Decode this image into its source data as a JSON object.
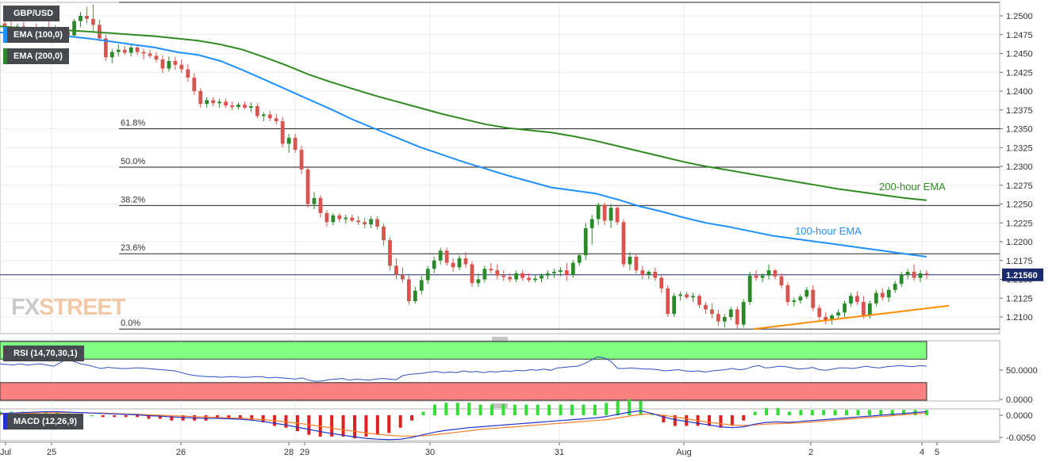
{
  "pair": "GBP/USD",
  "legend": {
    "ema100": "EMA (100,0)",
    "ema200": "EMA (200,0)",
    "rsi": "RSI (14,70,30,1)",
    "macd": "MACD (12,26,9)"
  },
  "watermark": {
    "part1": "FX",
    "part2": "STREET"
  },
  "annotations": {
    "ema200": "200-hour EMA",
    "ema100": "100-hour EMA"
  },
  "price_label": "1.21560",
  "colors": {
    "up": "#2a8a2a",
    "down": "#d9534f",
    "ema100": "#1e90ff",
    "ema200": "#2f8a1f",
    "trendline": "#ff8c00",
    "rsi": "#3050c0",
    "rsi_ob": "#80ff80",
    "rsi_os": "#f88080",
    "macd_line": "#2233cc",
    "signal_line": "#ff7f27",
    "hist_pos": "#33dd33",
    "hist_neg": "#e02020"
  },
  "chart_data": {
    "type": "candlestick",
    "price_axis": {
      "ylim": [
        1.2075,
        1.2515
      ],
      "ticks": [
        "1.2500",
        "1.2475",
        "1.2450",
        "1.2425",
        "1.2400",
        "1.2375",
        "1.2350",
        "1.2325",
        "1.2300",
        "1.2275",
        "1.2250",
        "1.2225",
        "1.2200",
        "1.2175",
        "1.2150",
        "1.2125",
        "1.2100"
      ]
    },
    "x_labels": [
      "Jul",
      "25",
      "26",
      "28",
      "29",
      "30",
      "31",
      "Aug",
      "2",
      "4",
      "5"
    ],
    "fibonacci": [
      {
        "label": "61.8%",
        "price": 1.235
      },
      {
        "label": "50.0%",
        "price": 1.2299
      },
      {
        "label": "38.2%",
        "price": 1.2248
      },
      {
        "label": "23.6%",
        "price": 1.2184
      },
      {
        "label": "0.0%",
        "price": 1.2084
      }
    ],
    "current_price": 1.2156,
    "ohlc": [
      [
        1.249,
        1.2497,
        1.2478,
        1.2485
      ],
      [
        1.2485,
        1.2493,
        1.2475,
        1.248
      ],
      [
        1.248,
        1.249,
        1.2472,
        1.2486
      ],
      [
        1.2486,
        1.2492,
        1.247,
        1.2474
      ],
      [
        1.2474,
        1.2485,
        1.2468,
        1.2481
      ],
      [
        1.2481,
        1.249,
        1.2474,
        1.2477
      ],
      [
        1.2477,
        1.2486,
        1.247,
        1.2483
      ],
      [
        1.2483,
        1.2493,
        1.2476,
        1.2478
      ],
      [
        1.2478,
        1.2488,
        1.2468,
        1.2472
      ],
      [
        1.2472,
        1.2482,
        1.2466,
        1.2479
      ],
      [
        1.2479,
        1.2485,
        1.247,
        1.2474
      ],
      [
        1.2474,
        1.2496,
        1.2472,
        1.2493
      ],
      [
        1.2493,
        1.2505,
        1.2485,
        1.25
      ],
      [
        1.25,
        1.2512,
        1.249,
        1.2496
      ],
      [
        1.2496,
        1.2515,
        1.248,
        1.2488
      ],
      [
        1.2488,
        1.2495,
        1.2466,
        1.247
      ],
      [
        1.247,
        1.2475,
        1.244,
        1.2445
      ],
      [
        1.2445,
        1.2456,
        1.2437,
        1.2452
      ],
      [
        1.2452,
        1.2462,
        1.2446,
        1.2455
      ],
      [
        1.2455,
        1.246,
        1.2448,
        1.2451
      ],
      [
        1.2451,
        1.2462,
        1.2446,
        1.2458
      ],
      [
        1.2458,
        1.2462,
        1.2448,
        1.2452
      ],
      [
        1.2452,
        1.2456,
        1.2442,
        1.245
      ],
      [
        1.245,
        1.2455,
        1.2444,
        1.2447
      ],
      [
        1.2447,
        1.2452,
        1.2438,
        1.2442
      ],
      [
        1.2442,
        1.2448,
        1.2424,
        1.243
      ],
      [
        1.243,
        1.2446,
        1.2426,
        1.244
      ],
      [
        1.244,
        1.2446,
        1.2428,
        1.2435
      ],
      [
        1.2435,
        1.2442,
        1.2424,
        1.2429
      ],
      [
        1.2429,
        1.2436,
        1.2412,
        1.2418
      ],
      [
        1.2418,
        1.2424,
        1.2395,
        1.24
      ],
      [
        1.24,
        1.2404,
        1.2378,
        1.2383
      ],
      [
        1.2383,
        1.2392,
        1.2378,
        1.2388
      ],
      [
        1.2388,
        1.2392,
        1.238,
        1.2384
      ],
      [
        1.2384,
        1.239,
        1.2378,
        1.2386
      ],
      [
        1.2386,
        1.239,
        1.2378,
        1.2381
      ],
      [
        1.2381,
        1.2386,
        1.2375,
        1.2379
      ],
      [
        1.2379,
        1.2385,
        1.2376,
        1.2382
      ],
      [
        1.2382,
        1.2386,
        1.2376,
        1.2378
      ],
      [
        1.2378,
        1.2385,
        1.2372,
        1.238
      ],
      [
        1.238,
        1.2384,
        1.2364,
        1.2367
      ],
      [
        1.2367,
        1.2372,
        1.236,
        1.2369
      ],
      [
        1.2369,
        1.2374,
        1.236,
        1.2364
      ],
      [
        1.2364,
        1.237,
        1.2356,
        1.236
      ],
      [
        1.236,
        1.2366,
        1.2325,
        1.233
      ],
      [
        1.233,
        1.2343,
        1.2318,
        1.2338
      ],
      [
        1.2338,
        1.2343,
        1.2318,
        1.2322
      ],
      [
        1.2322,
        1.2328,
        1.229,
        1.2296
      ],
      [
        1.2296,
        1.23,
        1.2245,
        1.225
      ],
      [
        1.225,
        1.2266,
        1.2243,
        1.2258
      ],
      [
        1.2258,
        1.2262,
        1.2232,
        1.2238
      ],
      [
        1.2238,
        1.2242,
        1.222,
        1.2226
      ],
      [
        1.2226,
        1.2238,
        1.2222,
        1.2235
      ],
      [
        1.2235,
        1.2238,
        1.2226,
        1.223
      ],
      [
        1.223,
        1.2236,
        1.2224,
        1.2232
      ],
      [
        1.2232,
        1.2236,
        1.2226,
        1.2228
      ],
      [
        1.2228,
        1.2234,
        1.2222,
        1.2226
      ],
      [
        1.2226,
        1.2232,
        1.2218,
        1.2223
      ],
      [
        1.2223,
        1.2234,
        1.2218,
        1.223
      ],
      [
        1.223,
        1.2234,
        1.2216,
        1.222
      ],
      [
        1.222,
        1.2224,
        1.2195,
        1.2202
      ],
      [
        1.2202,
        1.2206,
        1.2162,
        1.2168
      ],
      [
        1.2168,
        1.2178,
        1.215,
        1.2156
      ],
      [
        1.2156,
        1.2166,
        1.2146,
        1.215
      ],
      [
        1.215,
        1.2156,
        1.2116,
        1.2121
      ],
      [
        1.2121,
        1.214,
        1.2118,
        1.2135
      ],
      [
        1.2135,
        1.2155,
        1.213,
        1.2149
      ],
      [
        1.2149,
        1.2168,
        1.2144,
        1.2164
      ],
      [
        1.2164,
        1.218,
        1.2158,
        1.2175
      ],
      [
        1.2175,
        1.2192,
        1.217,
        1.2188
      ],
      [
        1.2188,
        1.2192,
        1.2168,
        1.2172
      ],
      [
        1.2172,
        1.2178,
        1.216,
        1.2166
      ],
      [
        1.2166,
        1.2182,
        1.2162,
        1.2178
      ],
      [
        1.2178,
        1.2186,
        1.2165,
        1.217
      ],
      [
        1.217,
        1.2174,
        1.214,
        1.2145
      ],
      [
        1.2145,
        1.2158,
        1.214,
        1.215
      ],
      [
        1.215,
        1.2168,
        1.2146,
        1.2164
      ],
      [
        1.2164,
        1.2172,
        1.2158,
        1.2162
      ],
      [
        1.2162,
        1.217,
        1.215,
        1.2155
      ],
      [
        1.2155,
        1.2162,
        1.2148,
        1.2153
      ],
      [
        1.2153,
        1.2158,
        1.2146,
        1.215
      ],
      [
        1.215,
        1.2162,
        1.2146,
        1.2158
      ],
      [
        1.2158,
        1.2162,
        1.2148,
        1.2152
      ],
      [
        1.2152,
        1.2158,
        1.2146,
        1.2149
      ],
      [
        1.2149,
        1.2156,
        1.2146,
        1.2151
      ],
      [
        1.2151,
        1.2158,
        1.2146,
        1.2155
      ],
      [
        1.2155,
        1.2162,
        1.215,
        1.2158
      ],
      [
        1.2158,
        1.2164,
        1.2152,
        1.216
      ],
      [
        1.216,
        1.2166,
        1.2154,
        1.2162
      ],
      [
        1.2162,
        1.2172,
        1.2148,
        1.2156
      ],
      [
        1.2156,
        1.2176,
        1.2152,
        1.2172
      ],
      [
        1.2172,
        1.2185,
        1.2168,
        1.2182
      ],
      [
        1.2182,
        1.2225,
        1.2176,
        1.2218
      ],
      [
        1.2218,
        1.2236,
        1.2196,
        1.223
      ],
      [
        1.223,
        1.2252,
        1.2222,
        1.2249
      ],
      [
        1.2249,
        1.2252,
        1.2222,
        1.2228
      ],
      [
        1.2228,
        1.225,
        1.2218,
        1.2245
      ],
      [
        1.2245,
        1.2248,
        1.2222,
        1.2226
      ],
      [
        1.2226,
        1.223,
        1.2166,
        1.217
      ],
      [
        1.217,
        1.2186,
        1.2162,
        1.218
      ],
      [
        1.218,
        1.2184,
        1.2158,
        1.2162
      ],
      [
        1.2162,
        1.2168,
        1.215,
        1.2156
      ],
      [
        1.2156,
        1.2162,
        1.215,
        1.216
      ],
      [
        1.216,
        1.2165,
        1.2148,
        1.2152
      ],
      [
        1.2152,
        1.2156,
        1.2132,
        1.2138
      ],
      [
        1.2138,
        1.2142,
        1.21,
        1.2104
      ],
      [
        1.2104,
        1.2132,
        1.21,
        1.2128
      ],
      [
        1.2128,
        1.2134,
        1.2122,
        1.213
      ],
      [
        1.213,
        1.2134,
        1.2124,
        1.2126
      ],
      [
        1.2126,
        1.2132,
        1.212,
        1.2128
      ],
      [
        1.2128,
        1.213,
        1.2112,
        1.2116
      ],
      [
        1.2116,
        1.212,
        1.2104,
        1.211
      ],
      [
        1.211,
        1.2118,
        1.2098,
        1.2104
      ],
      [
        1.2104,
        1.211,
        1.2088,
        1.2094
      ],
      [
        1.2094,
        1.2104,
        1.2086,
        1.21
      ],
      [
        1.21,
        1.2114,
        1.2096,
        1.211
      ],
      [
        1.211,
        1.2114,
        1.2084,
        1.209
      ],
      [
        1.209,
        1.2124,
        1.2086,
        1.212
      ],
      [
        1.212,
        1.216,
        1.2116,
        1.2155
      ],
      [
        1.2155,
        1.2162,
        1.2148,
        1.2152
      ],
      [
        1.2152,
        1.2158,
        1.2146,
        1.2155
      ],
      [
        1.2155,
        1.217,
        1.215,
        1.2162
      ],
      [
        1.2162,
        1.2164,
        1.215,
        1.2154
      ],
      [
        1.2154,
        1.2158,
        1.2138,
        1.2142
      ],
      [
        1.2142,
        1.2146,
        1.2115,
        1.212
      ],
      [
        1.212,
        1.2126,
        1.2114,
        1.2122
      ],
      [
        1.2122,
        1.213,
        1.2118,
        1.2127
      ],
      [
        1.2127,
        1.214,
        1.2124,
        1.2136
      ],
      [
        1.2136,
        1.2142,
        1.2108,
        1.2112
      ],
      [
        1.2112,
        1.2116,
        1.2096,
        1.21
      ],
      [
        1.21,
        1.2106,
        1.209,
        1.2096
      ],
      [
        1.2096,
        1.2104,
        1.209,
        1.2102
      ],
      [
        1.2102,
        1.211,
        1.2098,
        1.2106
      ],
      [
        1.2106,
        1.2122,
        1.21,
        1.2118
      ],
      [
        1.2118,
        1.2132,
        1.2114,
        1.2128
      ],
      [
        1.2128,
        1.2134,
        1.2116,
        1.212
      ],
      [
        1.212,
        1.2128,
        1.2098,
        1.2102
      ],
      [
        1.2102,
        1.2122,
        1.2098,
        1.2118
      ],
      [
        1.2118,
        1.2136,
        1.2114,
        1.2132
      ],
      [
        1.2132,
        1.2138,
        1.2122,
        1.2126
      ],
      [
        1.2126,
        1.214,
        1.212,
        1.2136
      ],
      [
        1.2136,
        1.2148,
        1.2132,
        1.2144
      ],
      [
        1.2144,
        1.216,
        1.214,
        1.2156
      ],
      [
        1.2156,
        1.2164,
        1.215,
        1.216
      ],
      [
        1.216,
        1.217,
        1.2148,
        1.2152
      ],
      [
        1.2152,
        1.2162,
        1.2146,
        1.2158
      ],
      [
        1.2158,
        1.2162,
        1.215,
        1.2156
      ]
    ],
    "ema100": [
      1.2478,
      1.2476,
      1.2476,
      1.2473,
      1.247,
      1.2466,
      1.2462,
      1.2458,
      1.2452,
      1.2448,
      1.244,
      1.2428,
      1.2415,
      1.2402,
      1.2389,
      1.2376,
      1.2362,
      1.235,
      1.2338,
      1.2326,
      1.2316,
      1.2306,
      1.2297,
      1.2288,
      1.228,
      1.2272,
      1.2268,
      1.2264,
      1.2256,
      1.2247,
      1.224,
      1.2232,
      1.2225,
      1.222,
      1.2214,
      1.2208,
      1.2204,
      1.22,
      1.2196,
      1.2192,
      1.2188,
      1.2184,
      1.218
    ],
    "ema200": [
      1.2486,
      1.2484,
      1.2482,
      1.2481,
      1.2479,
      1.2477,
      1.2475,
      1.2473,
      1.247,
      1.2467,
      1.2462,
      1.2455,
      1.2445,
      1.2434,
      1.2422,
      1.2412,
      1.2403,
      1.2394,
      1.2386,
      1.2378,
      1.237,
      1.2363,
      1.2356,
      1.2351,
      1.2348,
      1.2345,
      1.234,
      1.2334,
      1.2327,
      1.232,
      1.2313,
      1.2306,
      1.23,
      1.2295,
      1.229,
      1.2285,
      1.228,
      1.2275,
      1.227,
      1.2266,
      1.2262,
      1.2258,
      1.2255
    ],
    "trendline": {
      "from": 1.2084,
      "to": 1.2115
    },
    "rsi": {
      "axis_ticks": [
        "50.0000",
        "0.0000"
      ],
      "ylim": [
        0,
        100
      ],
      "overbought": 70,
      "oversold": 30,
      "values": [
        62,
        61,
        60,
        62,
        60,
        61,
        62,
        60,
        58,
        64,
        70,
        66,
        62,
        60,
        57,
        54,
        56,
        55,
        54,
        54,
        55,
        55,
        54,
        53,
        52,
        51,
        50,
        47,
        44,
        42,
        41,
        40,
        40,
        39,
        40,
        40,
        39,
        39,
        40,
        40,
        38,
        39,
        38,
        37,
        36,
        38,
        34,
        32,
        33,
        35,
        36,
        37,
        34,
        36,
        35,
        34,
        36,
        37,
        36,
        35,
        42,
        44,
        45,
        46,
        48,
        49,
        47,
        48,
        47,
        50,
        48,
        49,
        47,
        49,
        48,
        50,
        49,
        51,
        50,
        52,
        51,
        53,
        51,
        55,
        56,
        57,
        58,
        62,
        68,
        74,
        72,
        66,
        54,
        54,
        55,
        54,
        53,
        53,
        52,
        50,
        51,
        52,
        50,
        49,
        50,
        48,
        50,
        51,
        52,
        54,
        52,
        53,
        57,
        59,
        55,
        56,
        58,
        57,
        55,
        53,
        54,
        56,
        52,
        51,
        53,
        55,
        55,
        54,
        56,
        58,
        56,
        55,
        57,
        58,
        59,
        58,
        57,
        59,
        58
      ]
    },
    "macd": {
      "axis_ticks": [
        "0.0000",
        "-0.0050"
      ],
      "ylim": [
        -0.0062,
        0.0016
      ],
      "line": [
        0.0004,
        0.0005,
        0.0006,
        0.0007,
        0.0008,
        0.0008,
        0.0007,
        0.0006,
        0.0005,
        0.0004,
        0.0003,
        0.0002,
        0.0001,
        -0.0001,
        -0.0002,
        -0.0004,
        -0.0005,
        -0.0006,
        -0.0007,
        -0.0007,
        -0.0008,
        -0.0009,
        -0.0011,
        -0.0014,
        -0.0018,
        -0.0022,
        -0.0027,
        -0.0032,
        -0.0037,
        -0.0041,
        -0.0045,
        -0.0049,
        -0.0052,
        -0.0054,
        -0.0055,
        -0.0054,
        -0.005,
        -0.0044,
        -0.0038,
        -0.0034,
        -0.0031,
        -0.0028,
        -0.0026,
        -0.0024,
        -0.0022,
        -0.002,
        -0.0018,
        -0.0016,
        -0.0014,
        -0.0012,
        -0.001,
        -0.0008,
        -0.0006,
        -0.0003,
        0.0002,
        0.0007,
        0.001,
        0.0004,
        -0.0004,
        -0.001,
        -0.0014,
        -0.0018,
        -0.0022,
        -0.0026,
        -0.0028,
        -0.0026,
        -0.002,
        -0.0016,
        -0.0015,
        -0.0016,
        -0.0014,
        -0.0012,
        -0.001,
        -0.0008,
        -0.0006,
        -0.0004,
        -0.0002,
        0.0,
        0.0002,
        0.0004,
        0.0006,
        0.0008
      ],
      "signal": [
        0.0002,
        0.0003,
        0.0004,
        0.0005,
        0.0006,
        0.0006,
        0.0006,
        0.0006,
        0.0005,
        0.0005,
        0.0004,
        0.0003,
        0.0002,
        0.0001,
        0.0,
        -0.0001,
        -0.0002,
        -0.0003,
        -0.0004,
        -0.0005,
        -0.0006,
        -0.0007,
        -0.0008,
        -0.001,
        -0.0012,
        -0.0015,
        -0.0018,
        -0.0021,
        -0.0025,
        -0.0029,
        -0.0033,
        -0.0036,
        -0.004,
        -0.0043,
        -0.0045,
        -0.0047,
        -0.0047,
        -0.0046,
        -0.0044,
        -0.0041,
        -0.0038,
        -0.0035,
        -0.0032,
        -0.003,
        -0.0028,
        -0.0026,
        -0.0024,
        -0.0022,
        -0.002,
        -0.0018,
        -0.0016,
        -0.0014,
        -0.0012,
        -0.001,
        -0.0006,
        -0.0002,
        0.0002,
        0.0003,
        0.0,
        -0.0004,
        -0.0008,
        -0.0012,
        -0.0016,
        -0.0019,
        -0.0022,
        -0.0023,
        -0.0022,
        -0.002,
        -0.0019,
        -0.0018,
        -0.0017,
        -0.0015,
        -0.0013,
        -0.0011,
        -0.0009,
        -0.0007,
        -0.0005,
        -0.0003,
        -0.0001,
        0.0001,
        0.0003,
        0.0005
      ]
    }
  }
}
